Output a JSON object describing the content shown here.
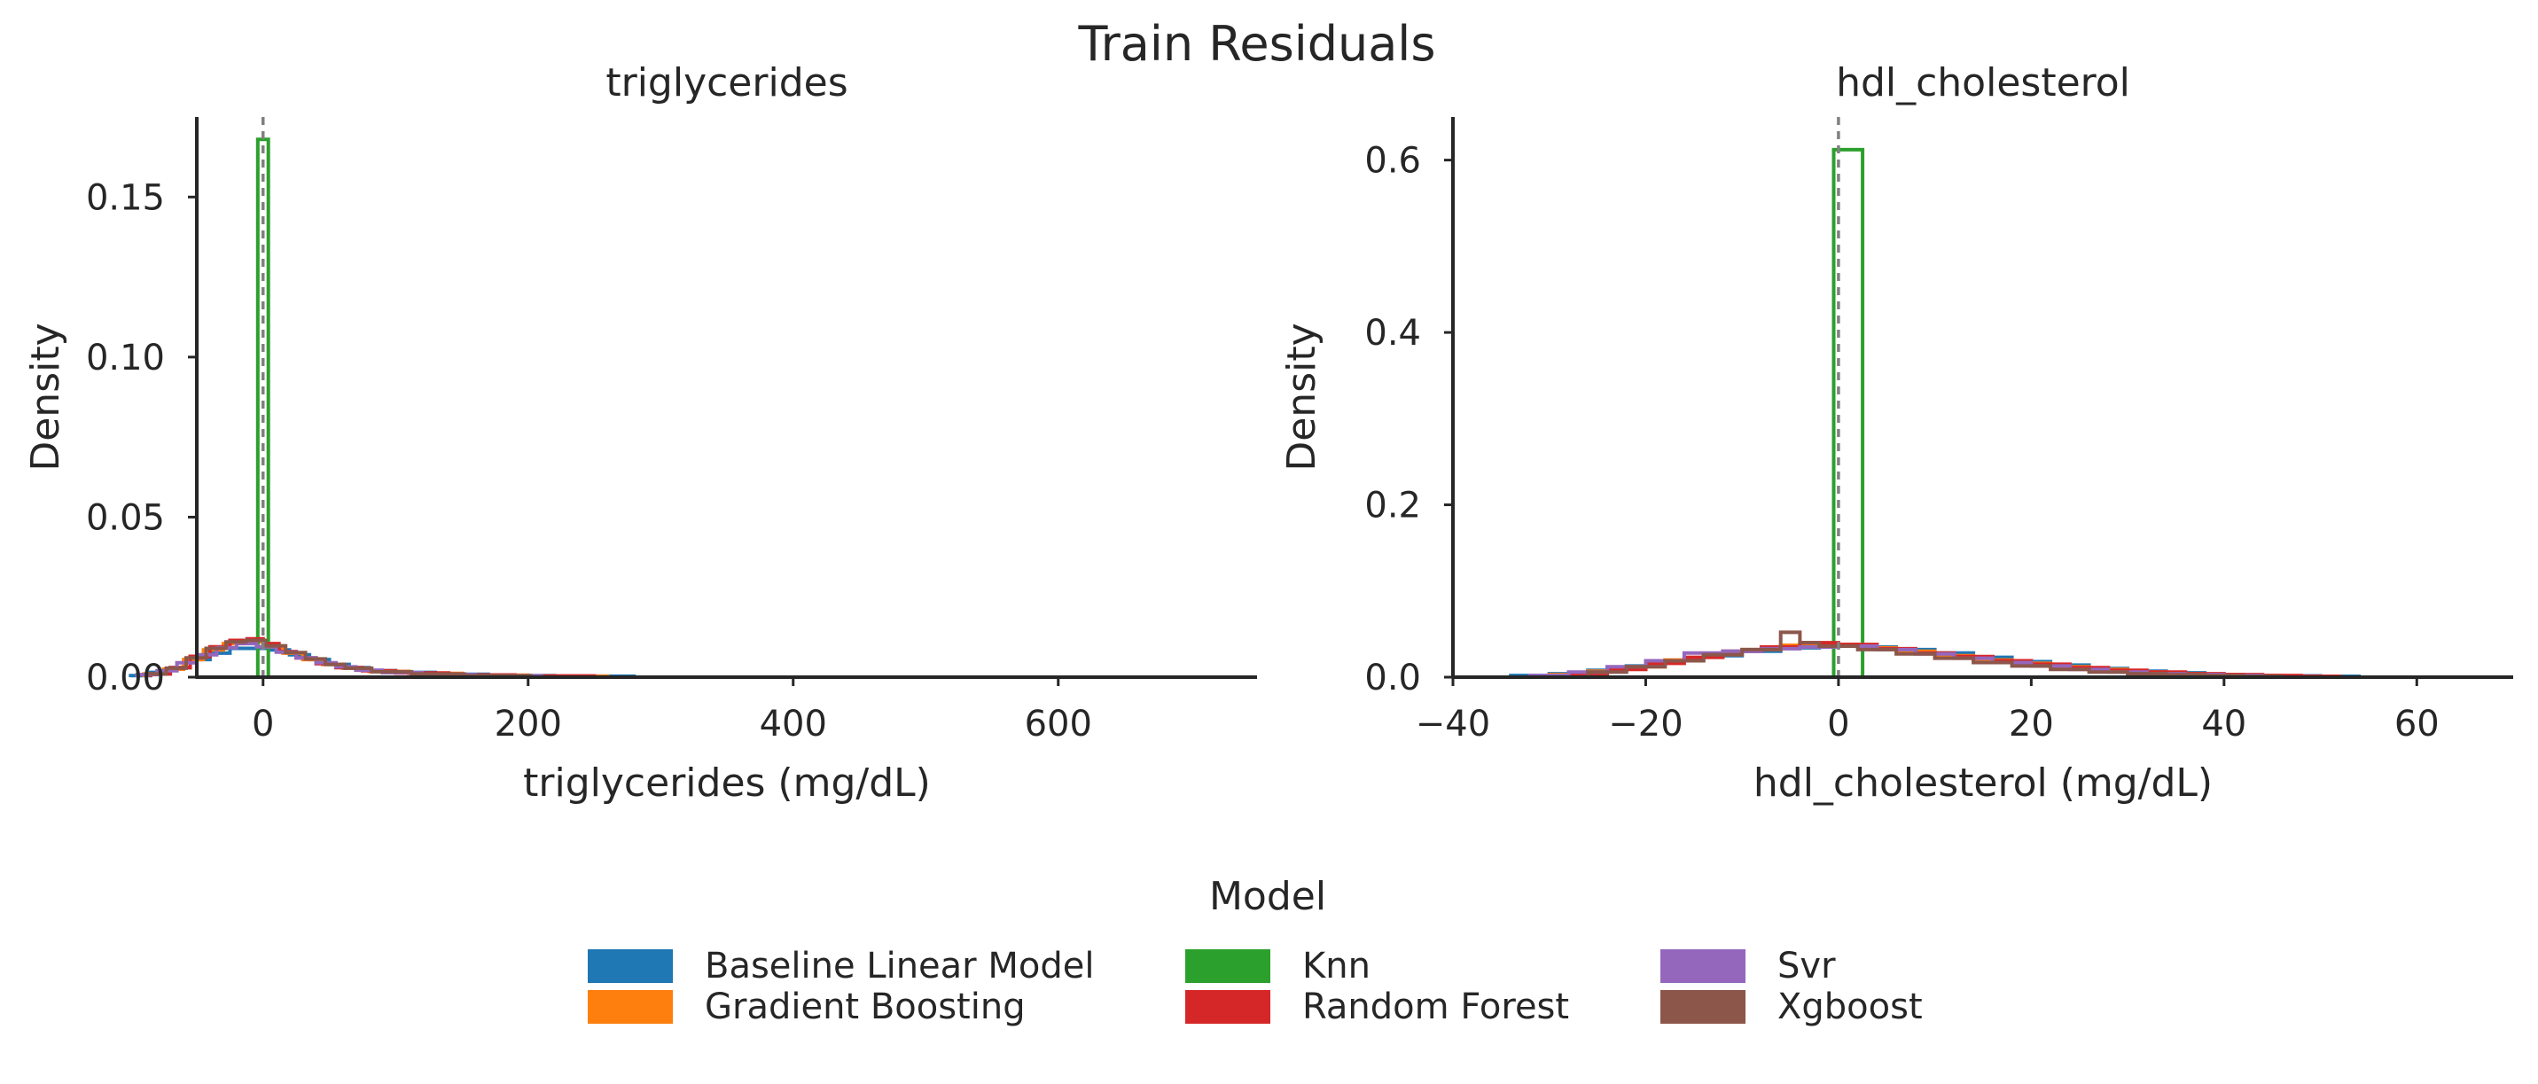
{
  "figure": {
    "title": "Train Residuals"
  },
  "legend": {
    "title": "Model",
    "entries": [
      {
        "label": "Baseline Linear Model",
        "color": "#1f77b4"
      },
      {
        "label": "Gradient Boosting",
        "color": "#ff7f0e"
      },
      {
        "label": "Knn",
        "color": "#2ca02c"
      },
      {
        "label": "Random Forest",
        "color": "#d62728"
      },
      {
        "label": "Svr",
        "color": "#9467bd"
      },
      {
        "label": "Xgboost",
        "color": "#8c564b"
      }
    ]
  },
  "chart_data": [
    {
      "type": "histogram",
      "title": "triglycerides",
      "xlabel": "triglycerides (mg/dL)",
      "ylabel": "Density",
      "xlim": [
        -50,
        750
      ],
      "ylim": [
        0,
        0.175
      ],
      "xticks": [
        0,
        200,
        400,
        600
      ],
      "yticks": [
        0.0,
        0.05,
        0.1,
        0.15
      ],
      "ytick_labels": [
        "0.00",
        "0.05",
        "0.10",
        "0.15"
      ],
      "reference_line_x": 0,
      "grid": false,
      "series": [
        {
          "name": "Baseline Linear Model",
          "color": "#1f77b4",
          "bin_edges": [
            -100,
            -85,
            -70,
            -55,
            -40,
            -25,
            -10,
            5,
            20,
            35,
            50,
            65,
            80,
            100,
            130,
            170,
            220,
            280
          ],
          "values": [
            0.0005,
            0.0015,
            0.003,
            0.0055,
            0.0075,
            0.009,
            0.009,
            0.0085,
            0.007,
            0.0055,
            0.004,
            0.003,
            0.002,
            0.0015,
            0.0009,
            0.0005,
            0.0003
          ]
        },
        {
          "name": "Gradient Boosting",
          "color": "#ff7f0e",
          "bin_edges": [
            -90,
            -75,
            -60,
            -45,
            -30,
            -15,
            0,
            15,
            30,
            45,
            60,
            80,
            110,
            150,
            200,
            260
          ],
          "values": [
            0.001,
            0.0025,
            0.0055,
            0.0085,
            0.0105,
            0.011,
            0.0095,
            0.0075,
            0.0055,
            0.004,
            0.0028,
            0.0018,
            0.0012,
            0.0006,
            0.0003
          ]
        },
        {
          "name": "Knn",
          "color": "#2ca02c",
          "bin_edges": [
            -4,
            4
          ],
          "values": [
            0.168
          ]
        },
        {
          "name": "Random Forest",
          "color": "#d62728",
          "bin_edges": [
            -85,
            -70,
            -55,
            -40,
            -25,
            -12,
            0,
            12,
            25,
            40,
            55,
            75,
            100,
            140,
            190,
            250
          ],
          "values": [
            0.001,
            0.003,
            0.0065,
            0.0095,
            0.0115,
            0.012,
            0.0105,
            0.008,
            0.006,
            0.0042,
            0.003,
            0.002,
            0.0013,
            0.0007,
            0.0004
          ]
        },
        {
          "name": "Svr",
          "color": "#9467bd",
          "bin_edges": [
            -95,
            -80,
            -65,
            -50,
            -35,
            -20,
            -5,
            10,
            25,
            40,
            55,
            70,
            90,
            120,
            160,
            210
          ],
          "values": [
            0.0008,
            0.002,
            0.0045,
            0.007,
            0.0092,
            0.0105,
            0.0095,
            0.0078,
            0.006,
            0.0045,
            0.0032,
            0.0022,
            0.0014,
            0.0008,
            0.0004
          ]
        },
        {
          "name": "Xgboost",
          "color": "#8c564b",
          "bin_edges": [
            -88,
            -73,
            -58,
            -43,
            -28,
            -13,
            2,
            17,
            32,
            47,
            62,
            82,
            112,
            152,
            202
          ],
          "values": [
            0.001,
            0.0028,
            0.006,
            0.009,
            0.011,
            0.0115,
            0.0098,
            0.0077,
            0.0057,
            0.004,
            0.0028,
            0.0017,
            0.001,
            0.0005
          ]
        }
      ]
    },
    {
      "type": "histogram",
      "title": "hdl_cholesterol",
      "xlabel": "hdl_cholesterol (mg/dL)",
      "ylabel": "Density",
      "xlim": [
        -40,
        70
      ],
      "ylim": [
        0,
        0.65
      ],
      "xticks": [
        -40,
        -20,
        0,
        20,
        40,
        60
      ],
      "yticks": [
        0.0,
        0.2,
        0.4,
        0.6
      ],
      "ytick_labels": [
        "0.0",
        "0.2",
        "0.4",
        "0.6"
      ],
      "reference_line_x": 0,
      "grid": false,
      "series": [
        {
          "name": "Baseline Linear Model",
          "color": "#1f77b4",
          "bin_edges": [
            -34,
            -30,
            -26,
            -22,
            -18,
            -14,
            -10,
            -6,
            -2,
            2,
            6,
            10,
            14,
            18,
            22,
            26,
            30,
            34,
            38,
            42,
            46,
            50,
            54
          ],
          "values": [
            0.002,
            0.004,
            0.008,
            0.013,
            0.019,
            0.025,
            0.03,
            0.034,
            0.036,
            0.035,
            0.032,
            0.028,
            0.023,
            0.018,
            0.014,
            0.01,
            0.007,
            0.005,
            0.003,
            0.002,
            0.0015,
            0.001
          ]
        },
        {
          "name": "Gradient Boosting",
          "color": "#ff7f0e",
          "bin_edges": [
            -30,
            -26,
            -22,
            -18,
            -14,
            -10,
            -6,
            -2,
            2,
            6,
            10,
            14,
            18,
            22,
            26,
            30,
            34,
            38,
            42,
            46,
            50
          ],
          "values": [
            0.003,
            0.007,
            0.012,
            0.02,
            0.027,
            0.032,
            0.037,
            0.038,
            0.034,
            0.03,
            0.025,
            0.02,
            0.016,
            0.012,
            0.009,
            0.006,
            0.004,
            0.003,
            0.002,
            0.001
          ]
        },
        {
          "name": "Knn",
          "color": "#2ca02c",
          "bin_edges": [
            -0.5,
            1.0,
            2.5
          ],
          "values": [
            0.612,
            0.612
          ]
        },
        {
          "name": "Random Forest",
          "color": "#d62728",
          "bin_edges": [
            -28,
            -24,
            -20,
            -16,
            -12,
            -8,
            -4,
            0,
            4,
            8,
            12,
            16,
            20,
            24,
            28,
            32,
            36,
            40,
            44,
            48,
            52
          ],
          "values": [
            0.004,
            0.009,
            0.016,
            0.023,
            0.03,
            0.035,
            0.04,
            0.038,
            0.033,
            0.028,
            0.024,
            0.019,
            0.015,
            0.011,
            0.008,
            0.006,
            0.004,
            0.003,
            0.002,
            0.001
          ]
        },
        {
          "name": "Svr",
          "color": "#9467bd",
          "bin_edges": [
            -32,
            -28,
            -24,
            -20,
            -16,
            -12,
            -8,
            -4,
            0,
            4,
            8,
            12,
            16,
            20,
            24,
            28,
            32,
            36,
            40,
            44
          ],
          "values": [
            0.002,
            0.006,
            0.012,
            0.019,
            0.028,
            0.03,
            0.033,
            0.035,
            0.036,
            0.032,
            0.027,
            0.022,
            0.017,
            0.013,
            0.009,
            0.006,
            0.004,
            0.003,
            0.002
          ]
        },
        {
          "name": "Xgboost",
          "color": "#8c564b",
          "bin_edges": [
            -26,
            -22,
            -18,
            -14,
            -10,
            -6,
            -4,
            -2,
            2,
            6,
            10,
            14,
            18,
            22,
            26,
            30,
            34,
            38,
            42,
            46
          ],
          "values": [
            0.006,
            0.012,
            0.019,
            0.026,
            0.032,
            0.052,
            0.04,
            0.036,
            0.032,
            0.027,
            0.022,
            0.017,
            0.013,
            0.009,
            0.006,
            0.004,
            0.003,
            0.002,
            0.001
          ]
        }
      ]
    }
  ]
}
